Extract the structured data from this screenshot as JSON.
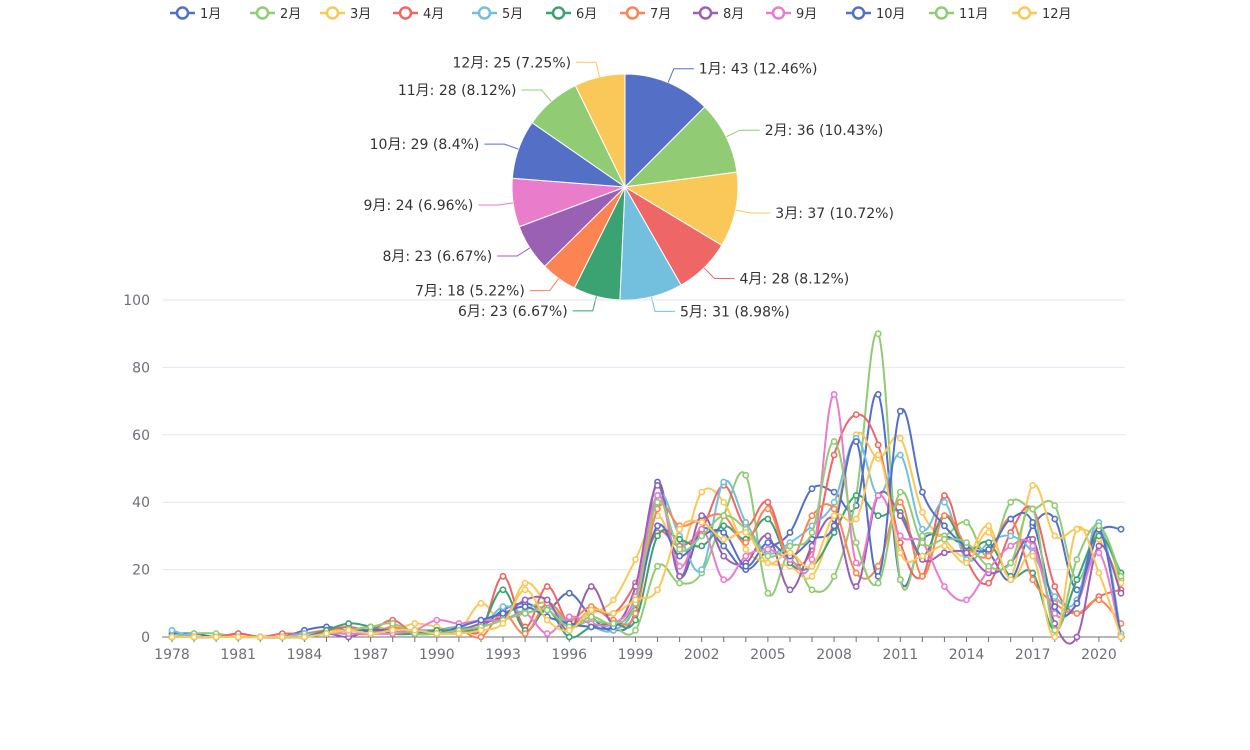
{
  "chart_data": [
    {
      "type": "pie",
      "title": "",
      "slices": [
        {
          "name": "1月",
          "value": 43,
          "label": "1月: 43 (12.46%)",
          "color": "#5470c6"
        },
        {
          "name": "2月",
          "value": 36,
          "label": "2月: 36 (10.43%)",
          "color": "#91cc75"
        },
        {
          "name": "3月",
          "value": 37,
          "label": "3月: 37 (10.72%)",
          "color": "#fac858"
        },
        {
          "name": "4月",
          "value": 28,
          "label": "4月: 28 (8.12%)",
          "color": "#ee6666"
        },
        {
          "name": "5月",
          "value": 31,
          "label": "5月: 31 (8.98%)",
          "color": "#73c0de"
        },
        {
          "name": "6月",
          "value": 23,
          "label": "6月: 23 (6.67%)",
          "color": "#3ba272"
        },
        {
          "name": "7月",
          "value": 18,
          "label": "7月: 18 (5.22%)",
          "color": "#fc8452"
        },
        {
          "name": "8月",
          "value": 23,
          "label": "8月: 23 (6.67%)",
          "color": "#9a60b4"
        },
        {
          "name": "9月",
          "value": 24,
          "label": "9月: 24 (6.96%)",
          "color": "#ea7ccc"
        },
        {
          "name": "10月",
          "value": 29,
          "label": "10月: 29 (8.4%)",
          "color": "#5470c6"
        },
        {
          "name": "11月",
          "value": 28,
          "label": "11月: 28 (8.12%)",
          "color": "#91cc75"
        },
        {
          "name": "12月",
          "value": 25,
          "label": "12月: 25 (7.25%)",
          "color": "#fac858"
        }
      ]
    },
    {
      "type": "line",
      "title": "",
      "xlabel": "",
      "ylabel": "",
      "smooth": true,
      "grid": "horizontal",
      "legend_position": "top-center",
      "x": [
        1978,
        1979,
        1980,
        1981,
        1982,
        1983,
        1984,
        1985,
        1986,
        1987,
        1988,
        1989,
        1990,
        1991,
        1992,
        1993,
        1994,
        1995,
        1996,
        1997,
        1998,
        1999,
        2000,
        2001,
        2002,
        2003,
        2004,
        2005,
        2006,
        2007,
        2008,
        2009,
        2010,
        2011,
        2012,
        2013,
        2014,
        2015,
        2016,
        2017,
        2018,
        2019,
        2020,
        2021
      ],
      "x_ticks": [
        "1978",
        "1981",
        "1984",
        "1987",
        "1990",
        "1993",
        "1996",
        "1999",
        "2002",
        "2005",
        "2008",
        "2011",
        "2014",
        "2017",
        "2020"
      ],
      "ylim": [
        0,
        100
      ],
      "y_ticks": [
        "0",
        "20",
        "40",
        "60",
        "80",
        "100"
      ],
      "series": [
        {
          "name": "1月",
          "color": "#5470c6",
          "values": [
            1,
            1,
            0,
            1,
            0,
            0,
            2,
            3,
            2,
            3,
            2,
            2,
            2,
            2,
            3,
            8,
            10,
            8,
            13,
            6,
            2,
            8,
            46,
            18,
            32,
            27,
            20,
            26,
            31,
            44,
            43,
            39,
            72,
            17,
            29,
            30,
            27,
            25,
            17,
            33,
            35,
            14,
            31,
            32
          ]
        },
        {
          "name": "2月",
          "color": "#91cc75",
          "values": [
            0,
            1,
            1,
            0,
            0,
            0,
            1,
            2,
            2,
            3,
            2,
            1,
            1,
            2,
            3,
            5,
            8,
            10,
            3,
            5,
            3,
            2,
            21,
            16,
            19,
            36,
            48,
            13,
            25,
            14,
            18,
            42,
            90,
            17,
            30,
            30,
            34,
            24,
            40,
            38,
            39,
            17,
            31,
            17
          ]
        },
        {
          "name": "3月",
          "color": "#fac858",
          "values": [
            0,
            0,
            0,
            0,
            0,
            0,
            1,
            2,
            2,
            3,
            2,
            4,
            3,
            2,
            10,
            5,
            16,
            10,
            5,
            7,
            11,
            23,
            36,
            25,
            43,
            40,
            26,
            22,
            21,
            18,
            35,
            60,
            53,
            59,
            37,
            29,
            24,
            33,
            18,
            45,
            30,
            32,
            29,
            16
          ]
        },
        {
          "name": "4月",
          "color": "#ee6666",
          "values": [
            0,
            0,
            0,
            1,
            0,
            1,
            1,
            2,
            3,
            2,
            5,
            1,
            2,
            3,
            2,
            18,
            3,
            15,
            4,
            8,
            7,
            16,
            31,
            27,
            32,
            45,
            33,
            40,
            23,
            26,
            54,
            66,
            57,
            28,
            18,
            42,
            23,
            16,
            31,
            38,
            15,
            7,
            12,
            14
          ]
        },
        {
          "name": "5月",
          "color": "#73c0de",
          "values": [
            2,
            0,
            0,
            0,
            0,
            0,
            1,
            1,
            2,
            2,
            2,
            2,
            2,
            3,
            3,
            9,
            7,
            9,
            4,
            3,
            2,
            10,
            42,
            30,
            20,
            46,
            34,
            25,
            28,
            33,
            40,
            59,
            42,
            54,
            32,
            40,
            23,
            28,
            30,
            25,
            12,
            11,
            34,
            1
          ]
        },
        {
          "name": "6月",
          "color": "#3ba272",
          "values": [
            0,
            0,
            0,
            0,
            0,
            0,
            0,
            2,
            4,
            3,
            1,
            1,
            2,
            2,
            3,
            14,
            2,
            8,
            0,
            3,
            4,
            5,
            30,
            29,
            27,
            33,
            29,
            35,
            22,
            21,
            31,
            42,
            36,
            37,
            24,
            36,
            26,
            28,
            18,
            19,
            2,
            17,
            30,
            19
          ]
        },
        {
          "name": "7月",
          "color": "#fc8452",
          "values": [
            0,
            0,
            0,
            0,
            0,
            0,
            0,
            1,
            1,
            1,
            3,
            1,
            1,
            2,
            0,
            7,
            1,
            10,
            5,
            9,
            5,
            7,
            38,
            33,
            35,
            36,
            28,
            38,
            23,
            36,
            38,
            19,
            21,
            40,
            18,
            36,
            27,
            24,
            35,
            17,
            10,
            7,
            11,
            4
          ]
        },
        {
          "name": "8月",
          "color": "#9a60b4",
          "values": [
            0,
            0,
            0,
            0,
            0,
            0,
            0,
            1,
            0,
            2,
            2,
            2,
            1,
            2,
            4,
            6,
            11,
            11,
            2,
            15,
            4,
            15,
            45,
            18,
            36,
            24,
            22,
            30,
            14,
            27,
            35,
            15,
            42,
            36,
            23,
            25,
            25,
            19,
            22,
            29,
            4,
            0,
            27,
            13
          ]
        },
        {
          "name": "9月",
          "color": "#ea7ccc",
          "values": [
            0,
            0,
            0,
            0,
            0,
            0,
            0,
            1,
            1,
            1,
            1,
            2,
            5,
            4,
            5,
            5,
            7,
            1,
            6,
            4,
            4,
            12,
            42,
            21,
            32,
            17,
            24,
            26,
            23,
            23,
            72,
            22,
            42,
            30,
            28,
            15,
            11,
            20,
            27,
            27,
            7,
            10,
            25,
            0
          ]
        },
        {
          "name": "10月",
          "color": "#5470c6",
          "values": [
            0,
            0,
            0,
            0,
            0,
            0,
            0,
            1,
            2,
            2,
            2,
            2,
            1,
            3,
            5,
            7,
            9,
            6,
            4,
            3,
            3,
            10,
            33,
            24,
            30,
            31,
            21,
            28,
            24,
            29,
            33,
            58,
            18,
            67,
            43,
            33,
            27,
            26,
            35,
            34,
            9,
            10,
            32,
            0
          ]
        },
        {
          "name": "11月",
          "color": "#91cc75",
          "values": [
            0,
            0,
            0,
            0,
            0,
            0,
            0,
            1,
            2,
            3,
            4,
            1,
            1,
            2,
            3,
            5,
            7,
            8,
            3,
            6,
            4,
            10,
            40,
            26,
            30,
            36,
            32,
            24,
            27,
            31,
            58,
            28,
            16,
            43,
            28,
            29,
            28,
            21,
            22,
            38,
            2,
            23,
            33,
            18
          ]
        },
        {
          "name": "12月",
          "color": "#fac858",
          "values": [
            0,
            0,
            0,
            0,
            0,
            0,
            0,
            1,
            2,
            1,
            2,
            2,
            1,
            1,
            2,
            4,
            14,
            5,
            2,
            8,
            7,
            11,
            14,
            32,
            34,
            29,
            31,
            22,
            25,
            21,
            36,
            35,
            54,
            25,
            24,
            27,
            22,
            31,
            17,
            24,
            0,
            32,
            19,
            0
          ]
        }
      ]
    }
  ]
}
